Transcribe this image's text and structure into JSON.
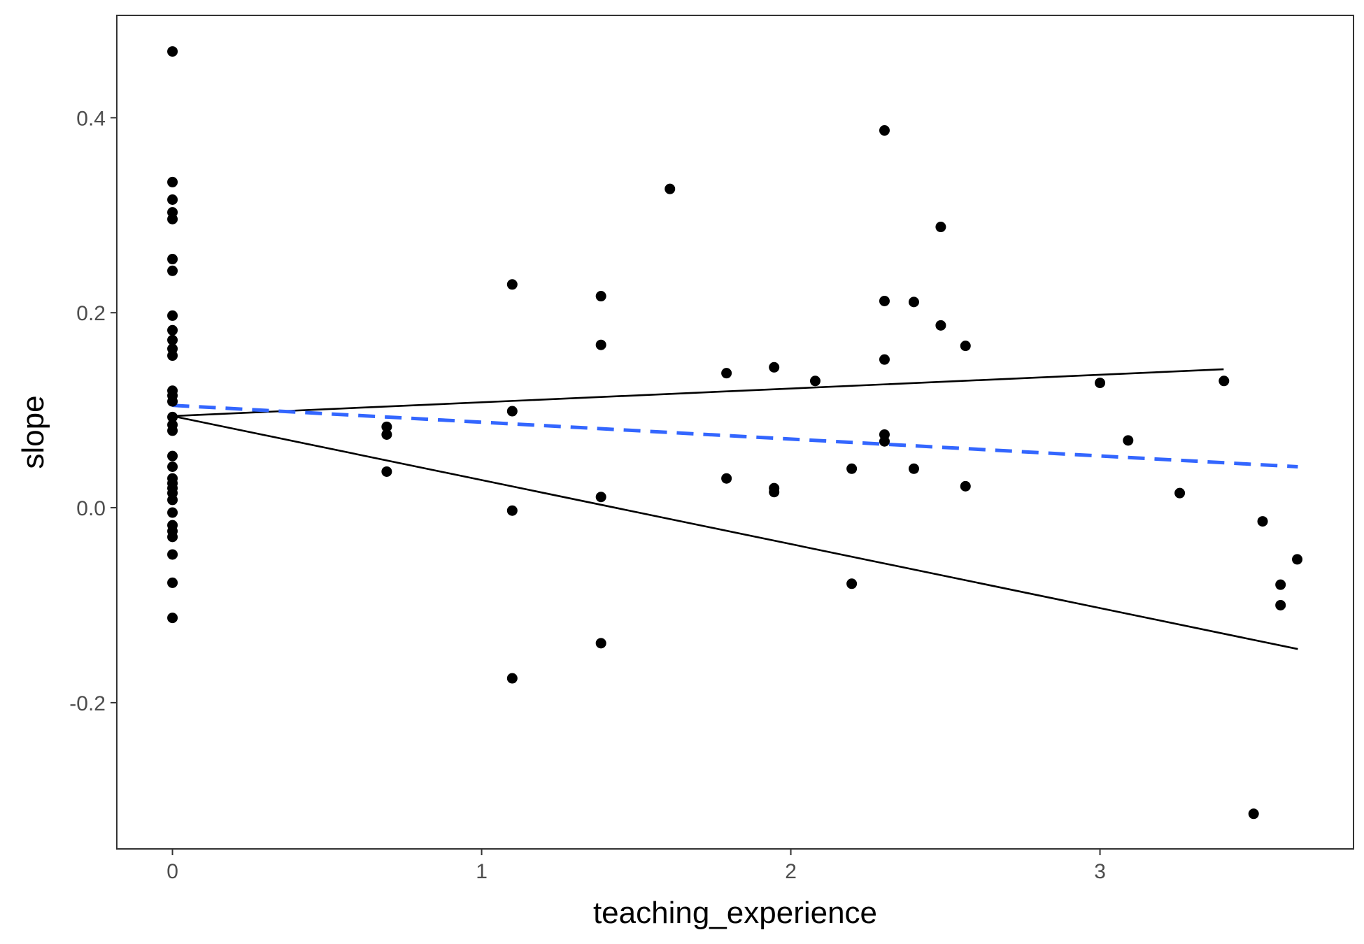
{
  "chart_data": {
    "type": "scatter",
    "title": "",
    "xlabel": "teaching_experience",
    "ylabel": "slope",
    "xlim": [
      -0.18,
      3.82
    ],
    "ylim": [
      -0.35,
      0.505
    ],
    "x_ticks": [
      0,
      1,
      2,
      3
    ],
    "x_tick_labels": [
      "0",
      "1",
      "2",
      "3"
    ],
    "y_ticks": [
      -0.2,
      0.0,
      0.2,
      0.4
    ],
    "y_tick_labels": [
      "-0.2",
      "0.0",
      "0.2",
      "0.4"
    ],
    "grid": false,
    "legend": "none",
    "points": [
      [
        0,
        0.468
      ],
      [
        0,
        0.334
      ],
      [
        0,
        0.316
      ],
      [
        0,
        0.303
      ],
      [
        0,
        0.296
      ],
      [
        0,
        0.255
      ],
      [
        0,
        0.243
      ],
      [
        0,
        0.197
      ],
      [
        0,
        0.182
      ],
      [
        0,
        0.172
      ],
      [
        0,
        0.163
      ],
      [
        0,
        0.156
      ],
      [
        0,
        0.12
      ],
      [
        0,
        0.115
      ],
      [
        0,
        0.109
      ],
      [
        0,
        0.093
      ],
      [
        0,
        0.085
      ],
      [
        0,
        0.079
      ],
      [
        0,
        0.053
      ],
      [
        0,
        0.042
      ],
      [
        0,
        0.03
      ],
      [
        0,
        0.025
      ],
      [
        0,
        0.02
      ],
      [
        0,
        0.015
      ],
      [
        0,
        0.008
      ],
      [
        0,
        -0.005
      ],
      [
        0,
        -0.018
      ],
      [
        0,
        -0.024
      ],
      [
        0,
        -0.03
      ],
      [
        0,
        -0.048
      ],
      [
        0,
        -0.077
      ],
      [
        0,
        -0.113
      ],
      [
        0.693,
        0.083
      ],
      [
        0.693,
        0.075
      ],
      [
        0.693,
        0.037
      ],
      [
        1.099,
        0.229
      ],
      [
        1.099,
        0.099
      ],
      [
        1.099,
        -0.003
      ],
      [
        1.099,
        -0.175
      ],
      [
        1.386,
        0.217
      ],
      [
        1.386,
        0.167
      ],
      [
        1.386,
        0.011
      ],
      [
        1.386,
        -0.139
      ],
      [
        1.609,
        0.327
      ],
      [
        1.792,
        0.138
      ],
      [
        1.792,
        0.03
      ],
      [
        1.946,
        0.144
      ],
      [
        1.946,
        0.02
      ],
      [
        1.946,
        0.016
      ],
      [
        2.079,
        0.13
      ],
      [
        2.197,
        0.04
      ],
      [
        2.197,
        -0.078
      ],
      [
        2.303,
        0.387
      ],
      [
        2.303,
        0.212
      ],
      [
        2.303,
        0.152
      ],
      [
        2.303,
        0.075
      ],
      [
        2.303,
        0.068
      ],
      [
        2.398,
        0.211
      ],
      [
        2.398,
        0.04
      ],
      [
        2.485,
        0.288
      ],
      [
        2.485,
        0.187
      ],
      [
        2.565,
        0.166
      ],
      [
        2.565,
        0.022
      ],
      [
        3.0,
        0.128
      ],
      [
        3.091,
        0.069
      ],
      [
        3.258,
        0.015
      ],
      [
        3.401,
        0.13
      ],
      [
        3.497,
        -0.314
      ],
      [
        3.526,
        -0.014
      ],
      [
        3.584,
        -0.079
      ],
      [
        3.584,
        -0.1
      ],
      [
        3.638,
        -0.053
      ]
    ],
    "lines": [
      {
        "style": "solid",
        "color": "#000000",
        "x": [
          0,
          3.4
        ],
        "y": [
          0.094,
          0.142
        ]
      },
      {
        "style": "solid",
        "color": "#000000",
        "x": [
          0,
          3.64
        ],
        "y": [
          0.094,
          -0.145
        ]
      },
      {
        "style": "dashed",
        "color": "#3366FF",
        "x": [
          0,
          3.64
        ],
        "y": [
          0.105,
          0.042
        ]
      }
    ],
    "point_color": "#000000"
  }
}
